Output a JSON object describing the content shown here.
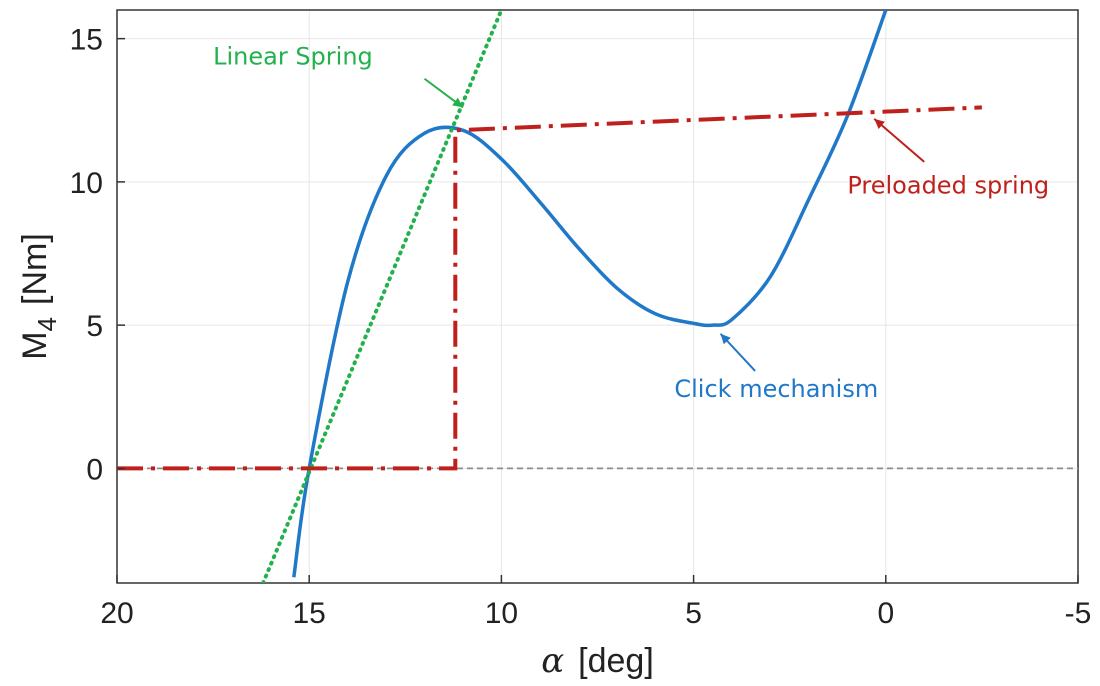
{
  "chart_data": {
    "type": "line",
    "xlabel_symbol": "α",
    "xlabel_unit": "[deg]",
    "ylabel_main": "M",
    "ylabel_sub": "4",
    "ylabel_unit": "[Nm]",
    "xlim": [
      20,
      -5
    ],
    "ylim": [
      -4,
      16
    ],
    "x_reversed": true,
    "grid": true,
    "xticks": [
      20,
      15,
      10,
      5,
      0,
      -5
    ],
    "xtick_labels": [
      "20",
      "15",
      "10",
      "5",
      "0",
      "-5"
    ],
    "yticks": [
      0,
      5,
      10,
      15
    ],
    "ytick_labels": [
      "0",
      "5",
      "10",
      "15"
    ],
    "zero_line": {
      "y": 0,
      "color": "#8c8c8c"
    },
    "series": [
      {
        "key": "click",
        "color": "#1f78c8",
        "style": "solid",
        "x": [
          15.4,
          15.0,
          14.0,
          13.0,
          12.0,
          11.0,
          10.0,
          9.0,
          8.0,
          7.0,
          6.0,
          5.0,
          4.5,
          4.0,
          3.0,
          2.0,
          1.0,
          0.0
        ],
        "y": [
          -3.8,
          0.0,
          6.5,
          10.2,
          11.7,
          11.8,
          10.8,
          9.3,
          7.7,
          6.3,
          5.4,
          5.06,
          5.0,
          5.2,
          6.7,
          9.4,
          12.3,
          16.0
        ]
      },
      {
        "key": "linear",
        "color": "#22b14c",
        "style": "dotted",
        "x": [
          16.2,
          10.0
        ],
        "y": [
          -4.0,
          16.0
        ]
      },
      {
        "key": "preloaded",
        "color": "#c0201c",
        "style": "dashdot",
        "x": [
          20.0,
          11.2,
          11.2,
          -2.5
        ],
        "y": [
          0.0,
          0.0,
          11.8,
          12.6
        ]
      }
    ],
    "annotations": [
      {
        "text": "Linear Spring",
        "color": "#22b14c",
        "label_at": [
          17.5,
          14.1
        ],
        "arrow_from": [
          12.0,
          13.6
        ],
        "arrow_to": [
          11.0,
          12.6
        ]
      },
      {
        "text": "Preloaded spring",
        "color": "#c0201c",
        "label_at": [
          1.0,
          9.6
        ],
        "arrow_from": [
          -1.0,
          10.7
        ],
        "arrow_to": [
          0.3,
          12.2
        ]
      },
      {
        "text": "Click mechanism",
        "color": "#1f78c8",
        "label_at": [
          5.5,
          2.5
        ],
        "arrow_from": [
          3.4,
          3.4
        ],
        "arrow_to": [
          4.3,
          4.7
        ]
      }
    ]
  }
}
